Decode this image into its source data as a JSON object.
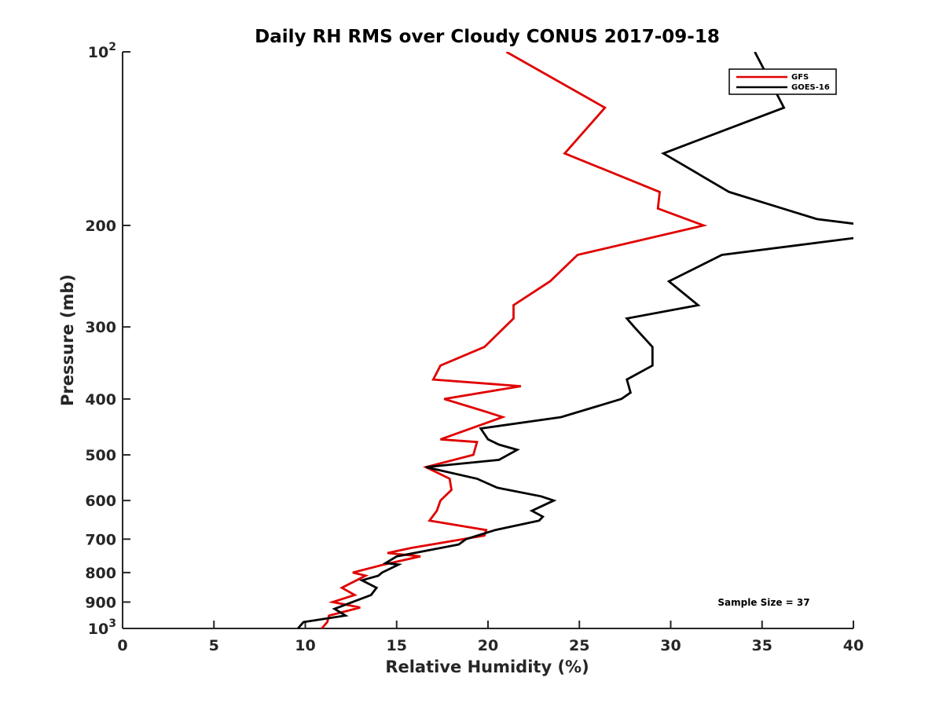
{
  "chart_data": {
    "type": "line",
    "title": "Daily RH RMS over Cloudy CONUS 2017-09-18",
    "xlabel": "Relative Humidity (%)",
    "ylabel": "Pressure (mb)",
    "xlim": [
      0,
      40
    ],
    "ylim": [
      100,
      1000
    ],
    "y_scale": "log",
    "y_reversed": true,
    "grid": false,
    "legend_position": "top-right",
    "x_ticks": [
      0,
      5,
      10,
      15,
      20,
      25,
      30,
      35,
      40
    ],
    "x_tick_labels": [
      "0",
      "5",
      "10",
      "15",
      "20",
      "25",
      "30",
      "35",
      "40"
    ],
    "y_ticks": [
      100,
      200,
      300,
      400,
      500,
      600,
      700,
      800,
      900,
      1000
    ],
    "y_tick_labels": [
      {
        "base": "10",
        "exp": "2"
      },
      {
        "base": "200",
        "exp": ""
      },
      {
        "base": "300",
        "exp": ""
      },
      {
        "base": "400",
        "exp": ""
      },
      {
        "base": "500",
        "exp": ""
      },
      {
        "base": "600",
        "exp": ""
      },
      {
        "base": "700",
        "exp": ""
      },
      {
        "base": "800",
        "exp": ""
      },
      {
        "base": "900",
        "exp": ""
      },
      {
        "base": "10",
        "exp": "3"
      }
    ],
    "annotation": "Sample Size = 37",
    "series": [
      {
        "name": "GFS",
        "color": "#e00000",
        "points": [
          [
            21.0,
            100
          ],
          [
            26.4,
            125
          ],
          [
            24.2,
            150
          ],
          [
            29.4,
            175
          ],
          [
            29.3,
            187
          ],
          [
            31.8,
            200
          ],
          [
            24.9,
            225
          ],
          [
            23.4,
            250
          ],
          [
            21.4,
            275
          ],
          [
            21.4,
            290
          ],
          [
            19.8,
            325
          ],
          [
            17.4,
            350
          ],
          [
            17.0,
            370
          ],
          [
            21.8,
            380
          ],
          [
            17.6,
            400
          ],
          [
            19.8,
            420
          ],
          [
            20.8,
            430
          ],
          [
            17.4,
            470
          ],
          [
            19.4,
            475
          ],
          [
            19.2,
            500
          ],
          [
            16.6,
            525
          ],
          [
            17.9,
            550
          ],
          [
            18.0,
            575
          ],
          [
            17.4,
            600
          ],
          [
            17.2,
            625
          ],
          [
            16.8,
            650
          ],
          [
            19.9,
            675
          ],
          [
            19.8,
            690
          ],
          [
            15.8,
            725
          ],
          [
            14.5,
            740
          ],
          [
            16.3,
            750
          ],
          [
            14.3,
            775
          ],
          [
            12.6,
            800
          ],
          [
            13.3,
            810
          ],
          [
            12.8,
            825
          ],
          [
            12.0,
            850
          ],
          [
            12.7,
            875
          ],
          [
            11.5,
            900
          ],
          [
            13.0,
            920
          ],
          [
            11.3,
            950
          ],
          [
            11.2,
            975
          ],
          [
            10.9,
            1000
          ]
        ]
      },
      {
        "name": "GOES-16",
        "color": "#000000",
        "points": [
          [
            34.6,
            100
          ],
          [
            36.2,
            125
          ],
          [
            29.6,
            150
          ],
          [
            33.2,
            175
          ],
          [
            38.0,
            195
          ],
          [
            40.8,
            200
          ],
          [
            40.2,
            210
          ],
          [
            32.8,
            225
          ],
          [
            29.9,
            250
          ],
          [
            31.5,
            275
          ],
          [
            27.6,
            290
          ],
          [
            28.0,
            300
          ],
          [
            29.0,
            325
          ],
          [
            29.0,
            350
          ],
          [
            27.6,
            370
          ],
          [
            27.8,
            390
          ],
          [
            27.3,
            400
          ],
          [
            24.0,
            430
          ],
          [
            19.6,
            450
          ],
          [
            20.0,
            470
          ],
          [
            20.6,
            480
          ],
          [
            21.6,
            490
          ],
          [
            20.6,
            510
          ],
          [
            16.6,
            525
          ],
          [
            19.4,
            550
          ],
          [
            20.5,
            570
          ],
          [
            22.9,
            590
          ],
          [
            23.6,
            600
          ],
          [
            22.4,
            625
          ],
          [
            23.0,
            640
          ],
          [
            22.8,
            650
          ],
          [
            20.4,
            675
          ],
          [
            18.8,
            700
          ],
          [
            18.4,
            715
          ],
          [
            15.0,
            750
          ],
          [
            14.4,
            770
          ],
          [
            15.1,
            775
          ],
          [
            14.2,
            800
          ],
          [
            14.0,
            810
          ],
          [
            13.1,
            825
          ],
          [
            13.9,
            850
          ],
          [
            13.6,
            875
          ],
          [
            11.6,
            925
          ],
          [
            12.2,
            950
          ],
          [
            9.9,
            975
          ],
          [
            9.6,
            1000
          ]
        ]
      }
    ]
  }
}
